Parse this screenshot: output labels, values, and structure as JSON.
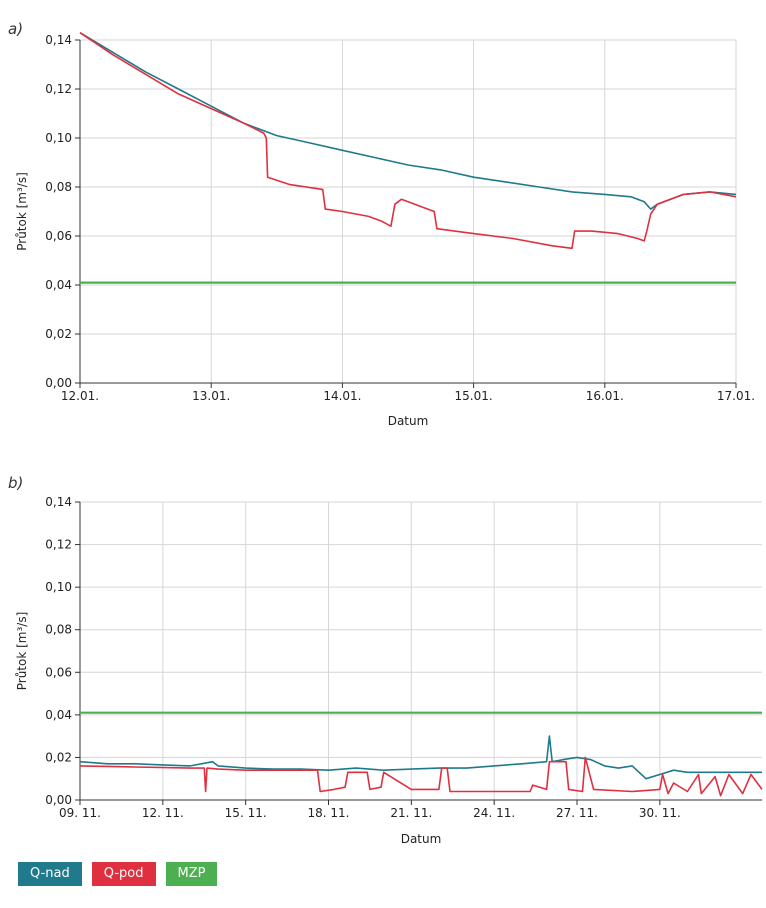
{
  "chart_data": [
    {
      "type": "line",
      "panel_label": "a)",
      "xlabel": "Datum",
      "ylabel": "Průtok [m³/s]",
      "ylim": [
        0,
        0.14
      ],
      "yticks": [
        "0,00",
        "0,02",
        "0,04",
        "0,06",
        "0,08",
        "0,10",
        "0,12",
        "0,14"
      ],
      "xlim": [
        0,
        5
      ],
      "xticks": [
        "12.01.",
        "13.01.",
        "14.01.",
        "15.01.",
        "16.01.",
        "17.01."
      ],
      "grid": true,
      "series": [
        {
          "name": "Q-nad",
          "color": "#1f7a8c",
          "x": [
            0,
            0.25,
            0.5,
            0.75,
            1,
            1.25,
            1.5,
            1.75,
            2,
            2.25,
            2.5,
            2.75,
            3,
            3.25,
            3.5,
            3.75,
            4,
            4.2,
            4.3,
            4.35,
            4.4,
            4.6,
            4.8,
            5
          ],
          "y": [
            0.143,
            0.135,
            0.127,
            0.12,
            0.113,
            0.106,
            0.101,
            0.098,
            0.095,
            0.092,
            0.089,
            0.087,
            0.084,
            0.082,
            0.08,
            0.078,
            0.077,
            0.076,
            0.074,
            0.071,
            0.073,
            0.077,
            0.078,
            0.077
          ]
        },
        {
          "name": "Q-pod",
          "color": "#e03040",
          "x": [
            0,
            0.25,
            0.5,
            0.75,
            1,
            1.25,
            1.4,
            1.42,
            1.43,
            1.6,
            1.85,
            1.87,
            2.0,
            2.2,
            2.3,
            2.37,
            2.4,
            2.45,
            2.6,
            2.7,
            2.72,
            3.0,
            3.3,
            3.6,
            3.75,
            3.77,
            3.9,
            4.1,
            4.25,
            4.3,
            4.32,
            4.35,
            4.4,
            4.6,
            4.8,
            5
          ],
          "y": [
            0.143,
            0.134,
            0.126,
            0.118,
            0.112,
            0.106,
            0.102,
            0.1,
            0.084,
            0.081,
            0.079,
            0.071,
            0.07,
            0.068,
            0.066,
            0.064,
            0.073,
            0.075,
            0.072,
            0.07,
            0.063,
            0.061,
            0.059,
            0.056,
            0.055,
            0.062,
            0.062,
            0.061,
            0.059,
            0.058,
            0.062,
            0.069,
            0.073,
            0.077,
            0.078,
            0.076
          ]
        },
        {
          "name": "MZP",
          "color": "#4caf50",
          "x": [
            0,
            5
          ],
          "y": [
            0.041,
            0.041
          ]
        }
      ]
    },
    {
      "type": "line",
      "panel_label": "b)",
      "xlabel": "Datum",
      "ylabel": "Průtok [m³/s]",
      "ylim": [
        0,
        0.14
      ],
      "yticks": [
        "0,00",
        "0,02",
        "0,04",
        "0,06",
        "0,08",
        "0,10",
        "0,12",
        "0,14"
      ],
      "xlim": [
        0,
        24.7
      ],
      "xticks": [
        "09. 11.",
        "12. 11.",
        "15. 11.",
        "18. 11.",
        "21. 11.",
        "24. 11.",
        "27. 11.",
        "30. 11."
      ],
      "xtick_days": [
        0,
        3,
        6,
        9,
        12,
        15,
        18,
        21
      ],
      "grid": true,
      "series": [
        {
          "name": "Q-nad",
          "color": "#1f7a8c",
          "x": [
            0,
            1,
            2,
            3,
            4,
            4.8,
            5,
            6,
            7,
            8,
            9,
            10,
            11,
            12,
            13,
            14,
            15,
            16,
            16.9,
            17,
            17.1,
            17.5,
            18,
            18.5,
            19,
            19.5,
            20,
            20.5,
            21,
            21.5,
            22,
            23,
            24,
            24.7
          ],
          "y": [
            0.018,
            0.017,
            0.017,
            0.0165,
            0.016,
            0.018,
            0.016,
            0.015,
            0.0145,
            0.0145,
            0.014,
            0.015,
            0.014,
            0.0145,
            0.015,
            0.015,
            0.016,
            0.017,
            0.018,
            0.03,
            0.018,
            0.019,
            0.02,
            0.019,
            0.016,
            0.015,
            0.016,
            0.01,
            0.012,
            0.014,
            0.013,
            0.013,
            0.013,
            0.013
          ]
        },
        {
          "name": "Q-pod",
          "color": "#e03040",
          "x": [
            0,
            2,
            4,
            4.5,
            4.55,
            4.6,
            5,
            6,
            7,
            8.6,
            8.7,
            9.2,
            9.6,
            9.7,
            10.4,
            10.5,
            10.9,
            11.0,
            12,
            13,
            13.1,
            13.3,
            13.4,
            15,
            16.3,
            16.4,
            16.9,
            17.0,
            17.6,
            17.7,
            18.2,
            18.3,
            18.6,
            20,
            21,
            21.1,
            21.3,
            21.5,
            22,
            22.4,
            22.5,
            23,
            23.2,
            23.5,
            24,
            24.3,
            24.7
          ],
          "y": [
            0.016,
            0.0155,
            0.015,
            0.015,
            0.004,
            0.015,
            0.0145,
            0.014,
            0.014,
            0.014,
            0.004,
            0.005,
            0.006,
            0.013,
            0.013,
            0.005,
            0.006,
            0.013,
            0.005,
            0.005,
            0.015,
            0.015,
            0.004,
            0.004,
            0.004,
            0.007,
            0.005,
            0.018,
            0.018,
            0.005,
            0.004,
            0.02,
            0.005,
            0.004,
            0.005,
            0.012,
            0.003,
            0.008,
            0.004,
            0.012,
            0.003,
            0.011,
            0.002,
            0.012,
            0.003,
            0.012,
            0.005
          ]
        },
        {
          "name": "MZP",
          "color": "#4caf50",
          "x": [
            0,
            24.7
          ],
          "y": [
            0.041,
            0.041
          ]
        }
      ]
    }
  ],
  "legend": [
    {
      "label": "Q-nad",
      "color": "#1f7a8c"
    },
    {
      "label": "Q-pod",
      "color": "#e03040"
    },
    {
      "label": "MZP",
      "color": "#4caf50"
    }
  ]
}
